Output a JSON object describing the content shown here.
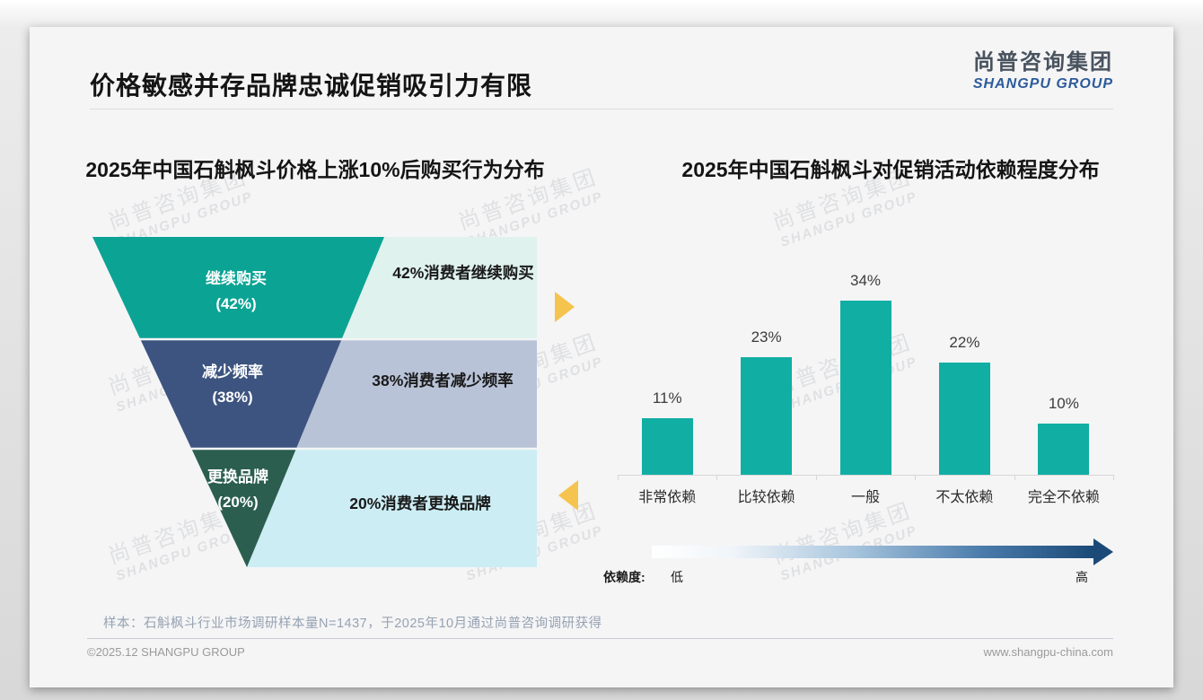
{
  "header": {
    "title": "价格敏感并存品牌忠诚促销吸引力有限",
    "logo_cn": "尚普咨询集团",
    "logo_en": "SHANGPU GROUP"
  },
  "watermark": {
    "cn": "尚普咨询集团",
    "en": "SHANGPU GROUP"
  },
  "funnel_chart": {
    "title": "2025年中国石斛枫斗价格上涨10%后购买行为分布",
    "levels": [
      {
        "label": "继续购买",
        "value_label": "(42%)",
        "note": "42%消费者继续购买",
        "color": "#0ba394",
        "note_bg": "#dff2ed"
      },
      {
        "label": "减少频率",
        "value_label": "(38%)",
        "note": "38%消费者减少频率",
        "color": "#3d5480",
        "note_bg": "#b9c3d8"
      },
      {
        "label": "更换品牌",
        "value_label": "(20%)",
        "note": "20%消费者更换品牌",
        "color": "#2b5e4f",
        "note_bg": "#ccedf4"
      }
    ],
    "arrow_color": "#f5c44e"
  },
  "bar_chart": {
    "title": "2025年中国石斛枫斗对促销活动依赖程度分布",
    "bar_color": "#11aea4",
    "bars": [
      {
        "category": "非常依赖",
        "value": 11,
        "label": "11%"
      },
      {
        "category": "比较依赖",
        "value": 23,
        "label": "23%"
      },
      {
        "category": "一般",
        "value": 34,
        "label": "34%"
      },
      {
        "category": "不太依赖",
        "value": 22,
        "label": "22%"
      },
      {
        "category": "完全不依赖",
        "value": 10,
        "label": "10%"
      }
    ],
    "dependence": {
      "label": "依赖度:",
      "low": "低",
      "high": "高"
    }
  },
  "chart_data": [
    {
      "type": "funnel",
      "title": "2025年中国石斛枫斗价格上涨10%后购买行为分布",
      "categories": [
        "继续购买",
        "减少频率",
        "更换品牌"
      ],
      "values": [
        42,
        38,
        20
      ],
      "unit": "%",
      "annotations": [
        "42%消费者继续购买",
        "38%消费者减少频率",
        "20%消费者更换品牌"
      ],
      "colors": [
        "#0ba394",
        "#3d5480",
        "#2b5e4f"
      ]
    },
    {
      "type": "bar",
      "title": "2025年中国石斛枫斗对促销活动依赖程度分布",
      "categories": [
        "非常依赖",
        "比较依赖",
        "一般",
        "不太依赖",
        "完全不依赖"
      ],
      "values": [
        11,
        23,
        34,
        22,
        10
      ],
      "unit": "%",
      "xlabel": "依赖度: 低 → 高",
      "ylabel": "",
      "ylim": [
        0,
        40
      ],
      "grid": false,
      "legend": false,
      "bar_color": "#11aea4"
    }
  ],
  "footnote": "样本：石斛枫斗行业市场调研样本量N=1437，于2025年10月通过尚普咨询调研获得",
  "footer": {
    "copyright": "©2025.12 SHANGPU GROUP",
    "website": "www.shangpu-china.com"
  }
}
